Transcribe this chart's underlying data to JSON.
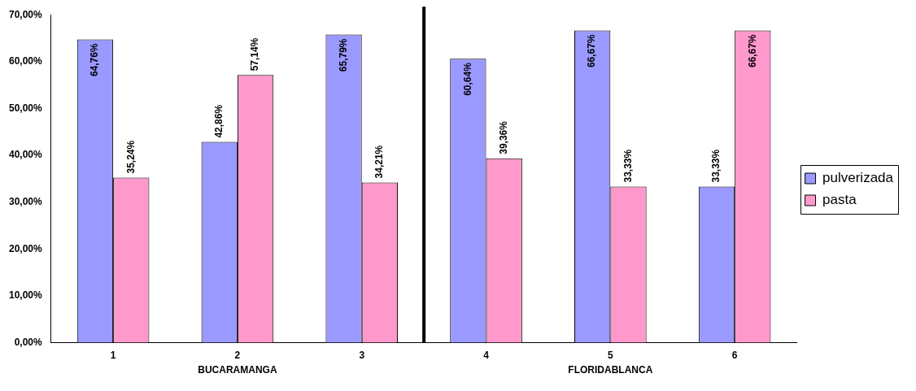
{
  "chart_data": {
    "type": "bar",
    "categories": [
      "1",
      "2",
      "3",
      "4",
      "5",
      "6"
    ],
    "series": [
      {
        "name": "pulverizada",
        "color": "#9999ff",
        "values": [
          64.76,
          42.86,
          65.79,
          60.64,
          66.67,
          33.33
        ],
        "value_labels": [
          "64,76%",
          "42,86%",
          "65,79%",
          "60,64%",
          "66,67%",
          "33,33%"
        ]
      },
      {
        "name": "pasta",
        "color": "#ff99cc",
        "values": [
          35.24,
          57.14,
          34.21,
          39.36,
          33.33,
          66.67
        ],
        "value_labels": [
          "35,24%",
          "57,14%",
          "34,21%",
          "39,36%",
          "33,33%",
          "66,67%"
        ]
      }
    ],
    "ylim": [
      0,
      70
    ],
    "yticks": [
      {
        "value": 0,
        "label": "0,00%"
      },
      {
        "value": 10,
        "label": "10,00%"
      },
      {
        "value": 20,
        "label": "20,00%"
      },
      {
        "value": 30,
        "label": "30,00%"
      },
      {
        "value": 40,
        "label": "40,00%"
      },
      {
        "value": 50,
        "label": "50,00%"
      },
      {
        "value": 60,
        "label": "60,00%"
      },
      {
        "value": 70,
        "label": "70,00%"
      }
    ],
    "annotations": [
      "BUCARAMANGA",
      "FLORIDABLANCA"
    ],
    "grid": false,
    "legend": "right"
  }
}
